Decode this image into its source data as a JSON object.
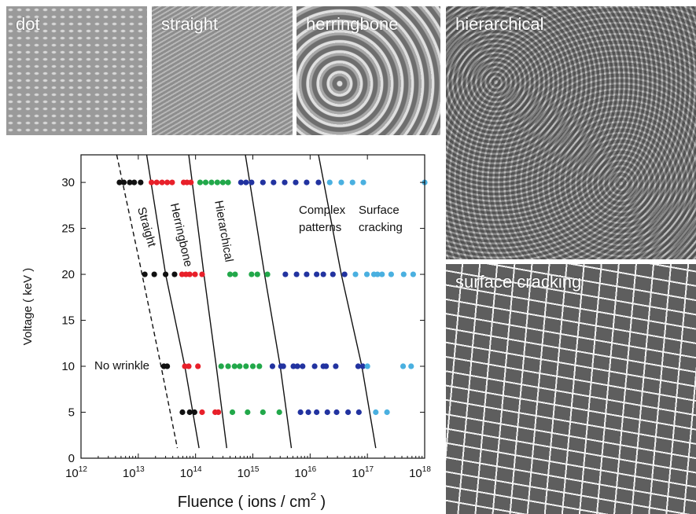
{
  "panels": [
    {
      "label": "dot"
    },
    {
      "label": "straight"
    },
    {
      "label": "herringbone"
    },
    {
      "label": "hierarchical"
    },
    {
      "label": "surface cracking"
    }
  ],
  "chart_data": {
    "type": "scatter",
    "x_label": [
      "Fluence ( ions / cm",
      "2",
      " )"
    ],
    "y_label": "Voltage ( keV )",
    "xscale": "log",
    "xlim": [
      1000000000000.0,
      1e+18
    ],
    "ylim": [
      0,
      33
    ],
    "xticks": [
      {
        "value": 1000000000000.0,
        "label": "10",
        "exponent": "12"
      },
      {
        "value": 10000000000000.0,
        "label": "10",
        "exponent": "13"
      },
      {
        "value": 100000000000000.0,
        "label": "10",
        "exponent": "14"
      },
      {
        "value": 1000000000000000.0,
        "label": "10",
        "exponent": "15"
      },
      {
        "value": 1e+16,
        "label": "10",
        "exponent": "16"
      },
      {
        "value": 1e+17,
        "label": "10",
        "exponent": "17"
      },
      {
        "value": 1e+18,
        "label": "10",
        "exponent": "18"
      }
    ],
    "yticks": [
      0,
      5,
      10,
      15,
      20,
      25,
      30
    ],
    "series": [
      {
        "color": "#111111",
        "x": [
          4700000000000.0,
          5600000000000.0,
          7100000000000.0,
          8500000000000.0,
          11000000000000.0,
          13000000000000.0,
          19000000000000.0,
          30000000000000.0,
          43000000000000.0,
          28000000000000.0,
          32000000000000.0,
          59000000000000.0,
          79000000000000.0,
          96000000000000.0
        ],
        "y": [
          30,
          30,
          30,
          30,
          30,
          20,
          20,
          20,
          20,
          10,
          10,
          5,
          5,
          5
        ]
      },
      {
        "color": "#e8202a",
        "x": [
          17000000000000.0,
          21000000000000.0,
          26000000000000.0,
          32000000000000.0,
          39000000000000.0,
          62000000000000.0,
          71000000000000.0,
          83000000000000.0,
          58000000000000.0,
          68000000000000.0,
          79000000000000.0,
          98000000000000.0,
          130000000000000.0,
          65000000000000.0,
          76000000000000.0,
          110000000000000.0,
          130000000000000.0,
          220000000000000.0,
          250000000000000.0
        ],
        "y": [
          30,
          30,
          30,
          30,
          30,
          30,
          30,
          30,
          20,
          20,
          20,
          20,
          20,
          10,
          10,
          10,
          5,
          5,
          5
        ]
      },
      {
        "color": "#22a84a",
        "x": [
          120000000000000.0,
          150000000000000.0,
          190000000000000.0,
          240000000000000.0,
          300000000000000.0,
          370000000000000.0,
          400000000000000.0,
          490000000000000.0,
          950000000000000.0,
          1200000000000000.0,
          1800000000000000.0,
          280000000000000.0,
          370000000000000.0,
          480000000000000.0,
          590000000000000.0,
          760000000000000.0,
          1000000000000000.0,
          1300000000000000.0,
          440000000000000.0,
          810000000000000.0,
          1500000000000000.0,
          2900000000000000.0
        ],
        "y": [
          30,
          30,
          30,
          30,
          30,
          30,
          20,
          20,
          20,
          20,
          20,
          10,
          10,
          10,
          10,
          10,
          10,
          10,
          5,
          5,
          5,
          5
        ]
      },
      {
        "color": "#2233a0",
        "x": [
          620000000000000.0,
          760000000000000.0,
          950000000000000.0,
          1500000000000000.0,
          2300000000000000.0,
          3600000000000000.0,
          5600000000000000.0,
          8700000000000000.0,
          1.4e+16,
          3700000000000000.0,
          5800000000000000.0,
          8700000000000000.0,
          1.3e+16,
          1.7e+16,
          2.5e+16,
          4e+16,
          2200000000000000.0,
          3100000000000000.0,
          3400000000000000.0,
          5100000000000000.0,
          6000000000000000.0,
          7400000000000000.0,
          1.2e+16,
          1.7e+16,
          1.9e+16,
          2.8e+16,
          6.9e+16,
          8.3e+16,
          6800000000000000.0,
          9300000000000000.0,
          1.3e+16,
          2e+16,
          2.9e+16,
          4.6e+16,
          7.1e+16
        ],
        "y": [
          30,
          30,
          30,
          30,
          30,
          30,
          30,
          30,
          30,
          20,
          20,
          20,
          20,
          20,
          20,
          20,
          10,
          10,
          10,
          10,
          10,
          10,
          10,
          10,
          10,
          10,
          10,
          10,
          5,
          5,
          5,
          5,
          5,
          5,
          5
        ]
      },
      {
        "color": "#4ab0e0",
        "x": [
          2.2e+16,
          3.5e+16,
          5.5e+16,
          8.5e+16,
          1e+18,
          6.2e+16,
          9.8e+16,
          1.3e+17,
          1.5e+17,
          1.8e+17,
          2.6e+17,
          4.3e+17,
          6.3e+17,
          1e+17,
          4.2e+17,
          5.8e+17,
          1.4e+17,
          2.2e+17
        ],
        "y": [
          30,
          30,
          30,
          30,
          30,
          20,
          20,
          20,
          20,
          20,
          20,
          20,
          20,
          10,
          10,
          10,
          5,
          5
        ]
      }
    ],
    "boundaries": [
      {
        "style": "dashed",
        "x": [
          4200000000000.0,
          10000000000000.0,
          25000000000000.0,
          48000000000000.0
        ],
        "y": [
          33,
          22,
          10,
          1.1
        ]
      },
      {
        "style": "solid",
        "x": [
          14000000000000.0,
          30000000000000.0,
          65000000000000.0,
          115000000000000.0
        ],
        "y": [
          33,
          20,
          10,
          1.1
        ]
      },
      {
        "style": "solid",
        "x": [
          76000000000000.0,
          140000000000000.0,
          230000000000000.0,
          350000000000000.0
        ],
        "y": [
          33,
          20,
          10,
          1.1
        ]
      },
      {
        "style": "solid",
        "x": [
          740000000000000.0,
          1600000000000000.0,
          3000000000000000.0,
          4700000000000000.0
        ],
        "y": [
          33,
          20,
          10,
          1.1
        ]
      },
      {
        "style": "solid",
        "x": [
          1.4e+16,
          3.5e+16,
          8e+16,
          1.4e+17
        ],
        "y": [
          33,
          20,
          10,
          1.1
        ]
      }
    ],
    "annotations": [
      {
        "text": [
          "Straight"
        ]
      },
      {
        "text": [
          "Herringbone"
        ]
      },
      {
        "text": [
          "Hierarchical"
        ]
      },
      {
        "text": [
          "Complex",
          "patterns"
        ]
      },
      {
        "text": [
          "Surface",
          "cracking"
        ]
      },
      {
        "text": [
          "No wrinkle"
        ]
      }
    ]
  }
}
